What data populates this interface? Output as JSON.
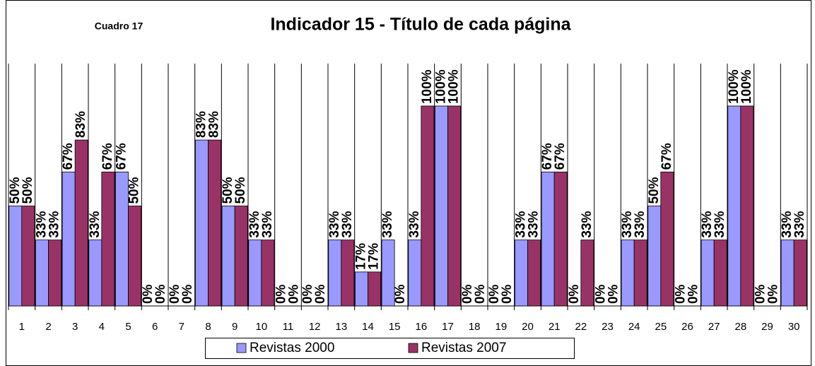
{
  "chart_data": {
    "type": "bar",
    "title": "Indicador 15 - Título de cada página",
    "subtitle": "Cuadro 17",
    "categories": [
      "1",
      "2",
      "3",
      "4",
      "5",
      "6",
      "7",
      "8",
      "9",
      "10",
      "11",
      "12",
      "13",
      "14",
      "15",
      "16",
      "17",
      "18",
      "19",
      "20",
      "21",
      "22",
      "23",
      "24",
      "25",
      "26",
      "27",
      "28",
      "29",
      "30"
    ],
    "series": [
      {
        "name": "Revistas 2000",
        "color": "#9999ff",
        "values": [
          50,
          33,
          67,
          33,
          67,
          0,
          0,
          83,
          50,
          33,
          0,
          0,
          33,
          17,
          33,
          33,
          100,
          0,
          0,
          33,
          67,
          0,
          0,
          33,
          50,
          0,
          33,
          100,
          0,
          33
        ],
        "value_labels": [
          "50%",
          "33%",
          "67%",
          "33%",
          "67%",
          "0%",
          "0%",
          "83%",
          "50%",
          "33%",
          "0%",
          "0%",
          "33%",
          "17%",
          "33%",
          "33%",
          "100%",
          "0%",
          "0%",
          "33%",
          "67%",
          "0%",
          "0%",
          "33%",
          "50%",
          "0%",
          "33%",
          "100%",
          "0%",
          "33%"
        ]
      },
      {
        "name": "Revistas 2007",
        "color": "#993366",
        "values": [
          50,
          33,
          83,
          67,
          50,
          0,
          0,
          83,
          50,
          33,
          0,
          0,
          33,
          17,
          0,
          100,
          100,
          0,
          0,
          33,
          67,
          33,
          0,
          33,
          67,
          0,
          33,
          100,
          0,
          33
        ],
        "value_labels": [
          "50%",
          "33%",
          "83%",
          "67%",
          "50%",
          "0%",
          "0%",
          "83%",
          "50%",
          "33%",
          "0%",
          "0%",
          "33%",
          "17%",
          "0%",
          "100%",
          "100%",
          "0%",
          "0%",
          "33%",
          "67%",
          "33%",
          "0%",
          "33%",
          "67%",
          "0%",
          "33%",
          "100%",
          "0%",
          "33%"
        ]
      }
    ]
  }
}
